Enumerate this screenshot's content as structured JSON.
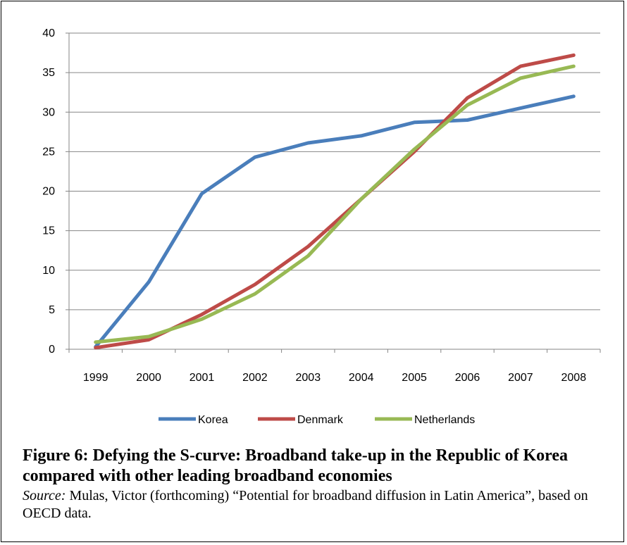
{
  "chart_data": {
    "type": "line",
    "title": "",
    "xlabel": "",
    "ylabel": "",
    "ylim": [
      0,
      40
    ],
    "yticks": [
      0,
      5,
      10,
      15,
      20,
      25,
      30,
      35,
      40
    ],
    "grid": "horizontal",
    "legend_position": "bottom",
    "categories": [
      "1999",
      "2000",
      "2001",
      "2002",
      "2003",
      "2004",
      "2005",
      "2006",
      "2007",
      "2008"
    ],
    "series": [
      {
        "name": "Korea",
        "color": "#4a7ebb",
        "values": [
          0.3,
          8.5,
          19.7,
          24.3,
          26.1,
          27.0,
          28.7,
          29.0,
          30.5,
          32.0
        ]
      },
      {
        "name": "Denmark",
        "color": "#be4b48",
        "values": [
          0.2,
          1.2,
          4.4,
          8.2,
          13.0,
          19.0,
          25.0,
          31.8,
          35.8,
          37.2
        ]
      },
      {
        "name": "Netherlands",
        "color": "#98b954",
        "values": [
          0.9,
          1.6,
          3.8,
          7.0,
          11.8,
          19.0,
          25.3,
          30.9,
          34.3,
          35.8
        ]
      }
    ]
  },
  "caption": {
    "title": "Figure 6: Defying the S-curve: Broadband take-up in the Republic of Korea compared with other leading broadband economies",
    "source_label": "Source:",
    "source_text": "Mulas, Victor (forthcoming) “Potential for broadband diffusion in Latin America”, based on OECD data."
  }
}
